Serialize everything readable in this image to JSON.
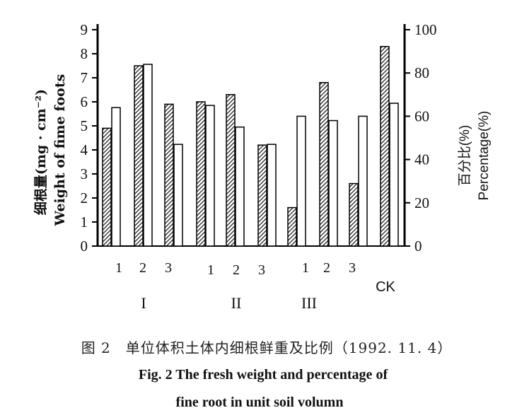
{
  "chart_data": {
    "type": "bar",
    "categories": [
      "1",
      "2",
      "3",
      "1",
      "2",
      "3",
      "1",
      "2",
      "3",
      "CK"
    ],
    "groups": [
      "I",
      "II",
      "III"
    ],
    "series": [
      {
        "name": "",
        "axis": "left",
        "pattern": "hatched",
        "values": [
          4.9,
          7.5,
          5.9,
          6.0,
          6.3,
          4.2,
          1.6,
          6.8,
          2.6,
          8.3
        ]
      },
      {
        "name": "",
        "axis": "right",
        "pattern": "open",
        "values": [
          64,
          84,
          47,
          65,
          55,
          47,
          60,
          58,
          60,
          66
        ]
      }
    ],
    "ylabel": "细根量(mg · cm⁻²)",
    "ylabel2": "Weight of fime foots",
    "y2label": "百分比(%)",
    "y2label2": "Percentage(%)",
    "ylim": [
      0,
      9
    ],
    "y2lim": [
      0,
      100
    ],
    "yticks": [
      "0",
      "1",
      "2",
      "3",
      "4",
      "5",
      "6",
      "7",
      "8",
      "9"
    ],
    "y2ticks": [
      "0",
      "20",
      "40",
      "60",
      "80",
      "100"
    ]
  },
  "caption": {
    "cn": "图 2　单位体积土体内细根鲜重及比例（1992. 11. 4）",
    "en_line1": "Fig. 2 The fresh weight and percentage of",
    "en_line2": "fine root in unit soil volumn"
  }
}
